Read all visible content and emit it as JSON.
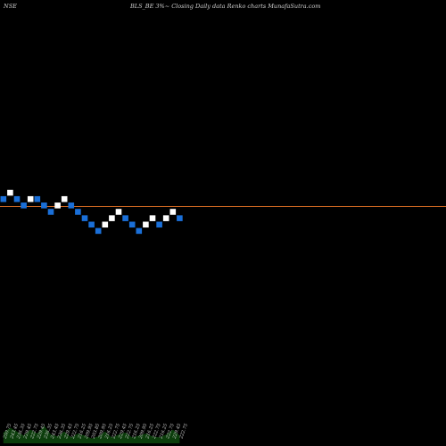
{
  "header": {
    "exchange": "NSE",
    "caption": "BLS_BE 3%~  Closing Daily data  Renko  charts MunafaSutra.com"
  },
  "chart_data": {
    "type": "renko",
    "title": "BLS_BE 3%~  Closing Daily data  Renko  charts MunafaSutra.com",
    "brick_size": "3%",
    "colors": {
      "background": "#000000",
      "up": "#ffffff",
      "down": "#1a6fd8",
      "level_line": "#c86420",
      "volume": "#0b3d0b",
      "label": "#cfcfcf"
    },
    "reference_level": 232,
    "bricks": [
      {
        "dir": "down",
        "low": 236.3,
        "high": 243.4
      },
      {
        "dir": "up",
        "low": 243.4,
        "high": 250.7
      },
      {
        "dir": "down",
        "low": 236.3,
        "high": 243.4
      },
      {
        "dir": "down",
        "low": 229.4,
        "high": 236.3
      },
      {
        "dir": "up",
        "low": 236.3,
        "high": 243.4
      },
      {
        "dir": "down",
        "low": 236.3,
        "high": 243.4
      },
      {
        "dir": "down",
        "low": 229.4,
        "high": 236.3
      },
      {
        "dir": "down",
        "low": 222.7,
        "high": 229.4
      },
      {
        "dir": "up",
        "low": 229.4,
        "high": 236.3
      },
      {
        "dir": "up",
        "low": 236.3,
        "high": 243.4
      },
      {
        "dir": "down",
        "low": 229.4,
        "high": 236.3
      },
      {
        "dir": "down",
        "low": 222.7,
        "high": 229.4
      },
      {
        "dir": "down",
        "low": 216.2,
        "high": 222.7
      },
      {
        "dir": "down",
        "low": 209.9,
        "high": 216.2
      },
      {
        "dir": "down",
        "low": 203.8,
        "high": 209.9
      },
      {
        "dir": "up",
        "low": 209.9,
        "high": 216.2
      },
      {
        "dir": "up",
        "low": 216.2,
        "high": 222.7
      },
      {
        "dir": "up",
        "low": 222.7,
        "high": 229.4
      },
      {
        "dir": "down",
        "low": 216.2,
        "high": 222.7
      },
      {
        "dir": "down",
        "low": 209.9,
        "high": 216.2
      },
      {
        "dir": "down",
        "low": 203.8,
        "high": 209.9
      },
      {
        "dir": "up",
        "low": 209.9,
        "high": 216.2
      },
      {
        "dir": "up",
        "low": 216.2,
        "high": 222.7
      },
      {
        "dir": "down",
        "low": 209.9,
        "high": 216.2
      },
      {
        "dir": "up",
        "low": 216.2,
        "high": 222.7
      },
      {
        "dir": "up",
        "low": 222.7,
        "high": 229.4
      },
      {
        "dir": "down",
        "low": 216.2,
        "high": 222.7
      }
    ],
    "price_labels": [
      "250.75",
      "243.45",
      "236.35",
      "229.45",
      "222.75",
      "229.45",
      "236.35",
      "243.45",
      "236.35",
      "229.45",
      "222.75",
      "216.25",
      "209.95",
      "203.85",
      "209.95",
      "216.25",
      "222.75",
      "229.45",
      "222.75",
      "216.25",
      "209.95",
      "216.25",
      "222.75",
      "216.25",
      "222.75",
      "229.45",
      "222.75"
    ],
    "volume": [
      0.55,
      0.8,
      0.6,
      0.4,
      0.7,
      0.5,
      0.9,
      0.45,
      0.35,
      0.6,
      0.3,
      0.5,
      0.4,
      0.25,
      0.35,
      0.6,
      0.3,
      0.45,
      0.55,
      0.3,
      0.4,
      0.5,
      0.35,
      0.3,
      0.45,
      0.7,
      0.4
    ]
  }
}
